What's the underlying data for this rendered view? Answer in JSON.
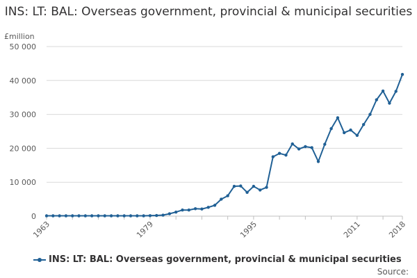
{
  "chart_data": {
    "type": "line",
    "title": "INS: LT: BAL: Overseas government, provincial & municipal securities",
    "unit_label": "£million",
    "ylim": [
      0,
      50000
    ],
    "y_ticks": [
      0,
      10000,
      20000,
      30000,
      40000,
      50000
    ],
    "y_tick_labels": [
      "0",
      "10 000",
      "20 000",
      "30 000",
      "40 000",
      "50 000"
    ],
    "x_tick_labels": [
      "1963",
      "1979",
      "1995",
      "2011",
      "2018"
    ],
    "x_ticks": [
      1963,
      1979,
      1995,
      2011,
      2018
    ],
    "xlim": [
      1963,
      2018
    ],
    "grid": true,
    "legend_position": "bottom-left",
    "series": [
      {
        "name": "INS: LT: BAL: Overseas government, provincial & municipal securities",
        "color": "#206095",
        "x": [
          1963,
          1964,
          1965,
          1966,
          1967,
          1968,
          1969,
          1970,
          1971,
          1972,
          1973,
          1974,
          1975,
          1976,
          1977,
          1978,
          1979,
          1980,
          1981,
          1982,
          1983,
          1984,
          1985,
          1986,
          1987,
          1988,
          1989,
          1990,
          1991,
          1992,
          1993,
          1994,
          1995,
          1996,
          1997,
          1998,
          1999,
          2000,
          2001,
          2002,
          2003,
          2004,
          2005,
          2006,
          2007,
          2008,
          2009,
          2010,
          2011,
          2012,
          2013,
          2014,
          2015,
          2016,
          2017,
          2018
        ],
        "values": [
          100,
          100,
          100,
          100,
          100,
          100,
          100,
          100,
          100,
          100,
          100,
          100,
          100,
          100,
          100,
          100,
          150,
          200,
          300,
          700,
          1200,
          1800,
          1800,
          2200,
          2100,
          2600,
          3200,
          5000,
          6000,
          8800,
          8900,
          7000,
          8800,
          7700,
          8500,
          17500,
          18500,
          18000,
          21300,
          19800,
          20500,
          20200,
          16100,
          21200,
          25800,
          29000,
          24600,
          25400,
          23800,
          27000,
          30000,
          34300,
          36900,
          33300,
          36800,
          41800
        ]
      }
    ],
    "source_label": "Source:"
  }
}
